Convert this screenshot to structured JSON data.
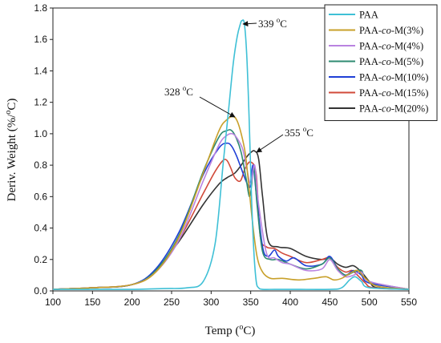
{
  "chart_data": {
    "type": "line",
    "xlabel": "Temp (°C)",
    "ylabel": "Deriv. Weight (%/°C)",
    "xlim": [
      100,
      550
    ],
    "ylim": [
      0.0,
      1.8
    ],
    "xticks": [
      100,
      150,
      200,
      250,
      300,
      350,
      400,
      450,
      500,
      550
    ],
    "yticks": [
      0.0,
      0.2,
      0.4,
      0.6,
      0.8,
      1.0,
      1.2,
      1.4,
      1.6,
      1.8
    ],
    "legend_position": "top-right",
    "series": [
      {
        "name": "PAA",
        "color": "#3fc0d6",
        "x": [
          100,
          150,
          200,
          240,
          270,
          290,
          305,
          315,
          322,
          328,
          333,
          337,
          339,
          342,
          345,
          348,
          351,
          354,
          357,
          360,
          365,
          380,
          400,
          450,
          465,
          475,
          482,
          490,
          500,
          550
        ],
        "y": [
          0.01,
          0.01,
          0.01,
          0.015,
          0.02,
          0.06,
          0.3,
          0.8,
          1.15,
          1.45,
          1.62,
          1.7,
          1.72,
          1.7,
          1.5,
          1.1,
          0.6,
          0.25,
          0.06,
          0.02,
          0.01,
          0.01,
          0.01,
          0.01,
          0.02,
          0.07,
          0.09,
          0.06,
          0.02,
          0.01
        ]
      },
      {
        "name": "PAA-co-M(3%)",
        "color": "#c8a02a",
        "x": [
          100,
          150,
          200,
          230,
          260,
          290,
          310,
          320,
          328,
          333,
          338,
          343,
          347,
          352,
          358,
          365,
          375,
          390,
          410,
          430,
          445,
          455,
          465,
          475,
          485,
          495,
          510,
          550
        ],
        "y": [
          0.01,
          0.02,
          0.04,
          0.12,
          0.35,
          0.75,
          1.02,
          1.09,
          1.11,
          1.08,
          1.0,
          0.88,
          0.7,
          0.45,
          0.22,
          0.12,
          0.08,
          0.08,
          0.07,
          0.08,
          0.09,
          0.07,
          0.08,
          0.11,
          0.13,
          0.08,
          0.03,
          0.01
        ]
      },
      {
        "name": "PAA-co-M(4%)",
        "color": "#b983e0",
        "x": [
          100,
          150,
          200,
          230,
          260,
          290,
          310,
          320,
          327,
          333,
          340,
          345,
          350,
          355,
          360,
          370,
          380,
          390,
          400,
          420,
          440,
          450,
          460,
          470,
          480,
          490,
          500,
          550
        ],
        "y": [
          0.01,
          0.02,
          0.04,
          0.12,
          0.33,
          0.7,
          0.93,
          0.99,
          1.0,
          0.97,
          0.9,
          0.78,
          0.68,
          0.8,
          0.55,
          0.24,
          0.21,
          0.18,
          0.17,
          0.13,
          0.14,
          0.2,
          0.13,
          0.09,
          0.1,
          0.12,
          0.06,
          0.01
        ]
      },
      {
        "name": "PAA-co-M(5%)",
        "color": "#2e8b72",
        "x": [
          100,
          150,
          200,
          230,
          260,
          290,
          310,
          320,
          326,
          332,
          338,
          344,
          349,
          354,
          358,
          365,
          375,
          385,
          400,
          420,
          440,
          450,
          460,
          470,
          480,
          490,
          500,
          550
        ],
        "y": [
          0.01,
          0.02,
          0.04,
          0.13,
          0.36,
          0.76,
          0.98,
          1.02,
          1.02,
          0.97,
          0.88,
          0.72,
          0.6,
          0.78,
          0.55,
          0.25,
          0.2,
          0.2,
          0.17,
          0.14,
          0.17,
          0.21,
          0.14,
          0.1,
          0.12,
          0.13,
          0.06,
          0.01
        ]
      },
      {
        "name": "PAA-co-M(10%)",
        "color": "#1f3fd6",
        "x": [
          100,
          150,
          200,
          230,
          260,
          290,
          310,
          320,
          326,
          332,
          338,
          344,
          349,
          353,
          357,
          365,
          372,
          380,
          385,
          395,
          405,
          420,
          440,
          450,
          460,
          470,
          480,
          490,
          500,
          550
        ],
        "y": [
          0.01,
          0.02,
          0.04,
          0.14,
          0.38,
          0.74,
          0.91,
          0.94,
          0.92,
          0.86,
          0.78,
          0.7,
          0.66,
          0.8,
          0.62,
          0.28,
          0.22,
          0.26,
          0.22,
          0.19,
          0.21,
          0.16,
          0.17,
          0.22,
          0.14,
          0.1,
          0.13,
          0.1,
          0.05,
          0.01
        ]
      },
      {
        "name": "PAA-co-M(15%)",
        "color": "#d14a3a",
        "x": [
          100,
          150,
          200,
          230,
          260,
          290,
          305,
          315,
          320,
          325,
          330,
          337,
          343,
          350,
          357,
          362,
          370,
          380,
          390,
          400,
          420,
          440,
          450,
          460,
          470,
          478,
          485,
          495,
          505,
          550
        ],
        "y": [
          0.01,
          0.02,
          0.04,
          0.12,
          0.33,
          0.62,
          0.76,
          0.83,
          0.83,
          0.78,
          0.72,
          0.7,
          0.78,
          0.82,
          0.74,
          0.35,
          0.28,
          0.27,
          0.24,
          0.22,
          0.18,
          0.2,
          0.21,
          0.15,
          0.12,
          0.13,
          0.1,
          0.05,
          0.02,
          0.01
        ]
      },
      {
        "name": "PAA-co-M(20%)",
        "color": "#333333",
        "x": [
          100,
          150,
          200,
          230,
          260,
          290,
          310,
          320,
          330,
          338,
          343,
          350,
          355,
          360,
          365,
          372,
          385,
          400,
          420,
          440,
          450,
          460,
          470,
          480,
          490,
          500,
          510,
          550
        ],
        "y": [
          0.01,
          0.02,
          0.04,
          0.13,
          0.32,
          0.55,
          0.68,
          0.72,
          0.75,
          0.8,
          0.84,
          0.88,
          0.89,
          0.84,
          0.6,
          0.32,
          0.28,
          0.27,
          0.22,
          0.2,
          0.21,
          0.17,
          0.15,
          0.16,
          0.12,
          0.06,
          0.02,
          0.01
        ]
      }
    ],
    "annotations": [
      {
        "text": "339 °C",
        "x": 339,
        "y": 1.72
      },
      {
        "text": "328 °C",
        "x": 328,
        "y": 1.11
      },
      {
        "text": "355 °C",
        "x": 355,
        "y": 0.89
      }
    ]
  }
}
